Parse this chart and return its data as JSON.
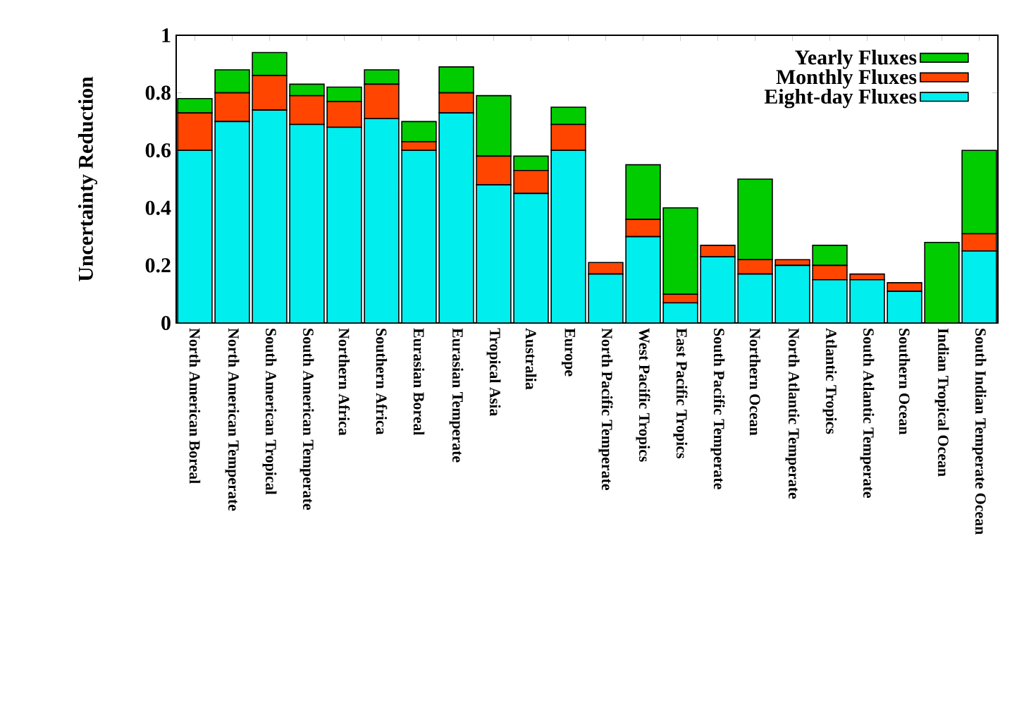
{
  "chart_data": {
    "type": "bar",
    "stacked": true,
    "ylabel": "Uncertainty Reduction",
    "categories": [
      "North American Boreal",
      "North American Temperate",
      "South American Tropical",
      "South American Temperate",
      "Northern Africa",
      "Southern Africa",
      "Eurasian Boreal",
      "Eurasian Temperate",
      "Tropical Asia",
      "Australia",
      "Europe",
      "North Pacific Temperate",
      "West Pacific Tropics",
      "East Pacific Tropics",
      "South Pacific Temperate",
      "Northern Ocean",
      "North Atlantic Temperate",
      "Atlantic Tropics",
      "South Atlantic Temperate",
      "Southern Ocean",
      "Indian Tropical Ocean",
      "South Indian Temperate Ocean"
    ],
    "series": [
      {
        "name": "Eight-day Fluxes",
        "color": "#00eeee",
        "values": [
          0.6,
          0.7,
          0.74,
          0.69,
          0.68,
          0.71,
          0.6,
          0.73,
          0.48,
          0.45,
          0.6,
          0.17,
          0.3,
          0.07,
          0.23,
          0.17,
          0.2,
          0.15,
          0.15,
          0.11,
          0,
          0.25
        ]
      },
      {
        "name": "Monthly Fluxes",
        "color": "#ff4500",
        "values": [
          0.13,
          0.1,
          0.12,
          0.1,
          0.09,
          0.12,
          0.03,
          0.07,
          0.1,
          0.08,
          0.09,
          0.04,
          0.06,
          0.03,
          0.04,
          0.05,
          0.02,
          0.05,
          0.02,
          0.03,
          0,
          0.06
        ]
      },
      {
        "name": "Yearly Fluxes",
        "color": "#00cc00",
        "values": [
          0.05,
          0.08,
          0.08,
          0.04,
          0.05,
          0.05,
          0.07,
          0.09,
          0.21,
          0.05,
          0.06,
          0,
          0.19,
          0.3,
          0,
          0.28,
          0,
          0.07,
          0,
          0,
          0.28,
          0.29
        ]
      }
    ],
    "ylim": [
      0,
      1
    ],
    "yticks": [
      0,
      0.2,
      0.4,
      0.6,
      0.8,
      1
    ],
    "legend": "top right"
  }
}
